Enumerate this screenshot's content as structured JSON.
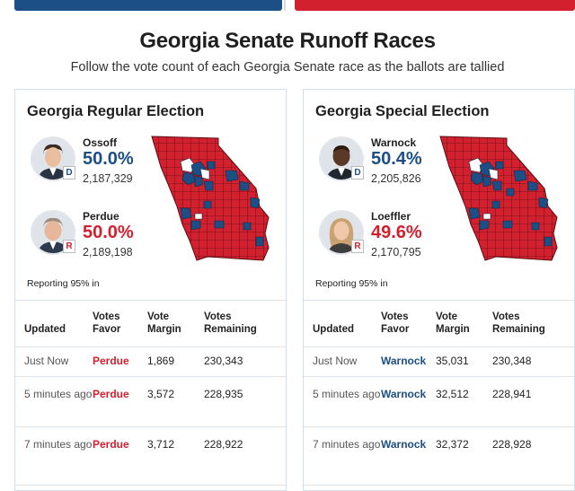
{
  "page": {
    "title": "Georgia Senate Runoff Races",
    "subtitle": "Follow the vote count of each Georgia Senate race as the ballots are tallied"
  },
  "colors": {
    "democrat": "#1c4f86",
    "republican": "#d3202f",
    "border": "#cfe0ee"
  },
  "races": [
    {
      "title": "Georgia Regular Election",
      "candidates": [
        {
          "name": "Ossoff",
          "party": "D",
          "percent": "50.0%",
          "votes": "2,187,329",
          "avatar_icon": "portrait-icon"
        },
        {
          "name": "Perdue",
          "party": "R",
          "percent": "50.0%",
          "votes": "2,189,198",
          "avatar_icon": "portrait-icon"
        }
      ],
      "reporting": "Reporting 95% in",
      "table": {
        "headers": {
          "updated": "Updated",
          "favor": "Votes Favor",
          "margin": "Vote Margin",
          "remaining": "Votes Remaining"
        },
        "rows": [
          {
            "updated": "Just Now",
            "favor": "Perdue",
            "margin": "1,869",
            "remaining": "230,343"
          },
          {
            "updated": "5 minutes ago",
            "favor": "Perdue",
            "margin": "3,572",
            "remaining": "228,935"
          },
          {
            "updated": "7 minutes ago",
            "favor": "Perdue",
            "margin": "3,712",
            "remaining": "228,922"
          }
        ]
      }
    },
    {
      "title": "Georgia Special Election",
      "candidates": [
        {
          "name": "Warnock",
          "party": "D",
          "percent": "50.4%",
          "votes": "2,205,826",
          "avatar_icon": "portrait-icon"
        },
        {
          "name": "Loeffler",
          "party": "R",
          "percent": "49.6%",
          "votes": "2,170,795",
          "avatar_icon": "portrait-icon"
        }
      ],
      "reporting": "Reporting 95% in",
      "table": {
        "headers": {
          "updated": "Updated",
          "favor": "Votes Favor",
          "margin": "Vote Margin",
          "remaining": "Votes Remaining"
        },
        "rows": [
          {
            "updated": "Just Now",
            "favor": "Warnock",
            "margin": "35,031",
            "remaining": "230,348"
          },
          {
            "updated": "5 minutes ago",
            "favor": "Warnock",
            "margin": "32,512",
            "remaining": "228,941"
          },
          {
            "updated": "7 minutes ago",
            "favor": "Warnock",
            "margin": "32,372",
            "remaining": "228,928"
          }
        ]
      }
    }
  ]
}
